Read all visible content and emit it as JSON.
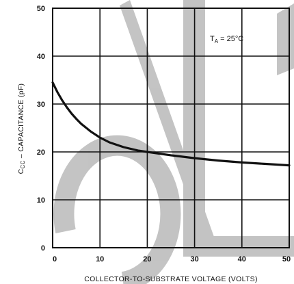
{
  "chart_data": {
    "type": "line",
    "xlabel": "COLLECTOR-TO-SUBSTRATE VOLTAGE (VOLTS)",
    "ylabel_main": "C",
    "ylabel_sub": "CC",
    "ylabel_rest": " – CAPACITANCE (pF)",
    "xlim": [
      0,
      50
    ],
    "ylim": [
      0,
      50
    ],
    "x_ticks": [
      "0",
      "10",
      "20",
      "30",
      "40",
      "50"
    ],
    "y_ticks": [
      "0",
      "10",
      "20",
      "30",
      "40",
      "50"
    ],
    "grid": true,
    "annotation": {
      "main": "T",
      "sub": "A",
      "rest": " = 25°C"
    },
    "series": [
      {
        "x": [
          0,
          1,
          2,
          3,
          4,
          5,
          6,
          8,
          10,
          12,
          15,
          18,
          20,
          25,
          30,
          35,
          40,
          45,
          50
        ],
        "y": [
          34.5,
          32.5,
          30.8,
          29.3,
          28.0,
          26.9,
          25.9,
          24.3,
          23.0,
          22.0,
          21.0,
          20.3,
          20.0,
          19.3,
          18.7,
          18.2,
          17.8,
          17.5,
          17.2
        ]
      }
    ]
  },
  "colors": {
    "line": "#111111",
    "grid": "#111111",
    "watermark": "#b3b3b3"
  }
}
